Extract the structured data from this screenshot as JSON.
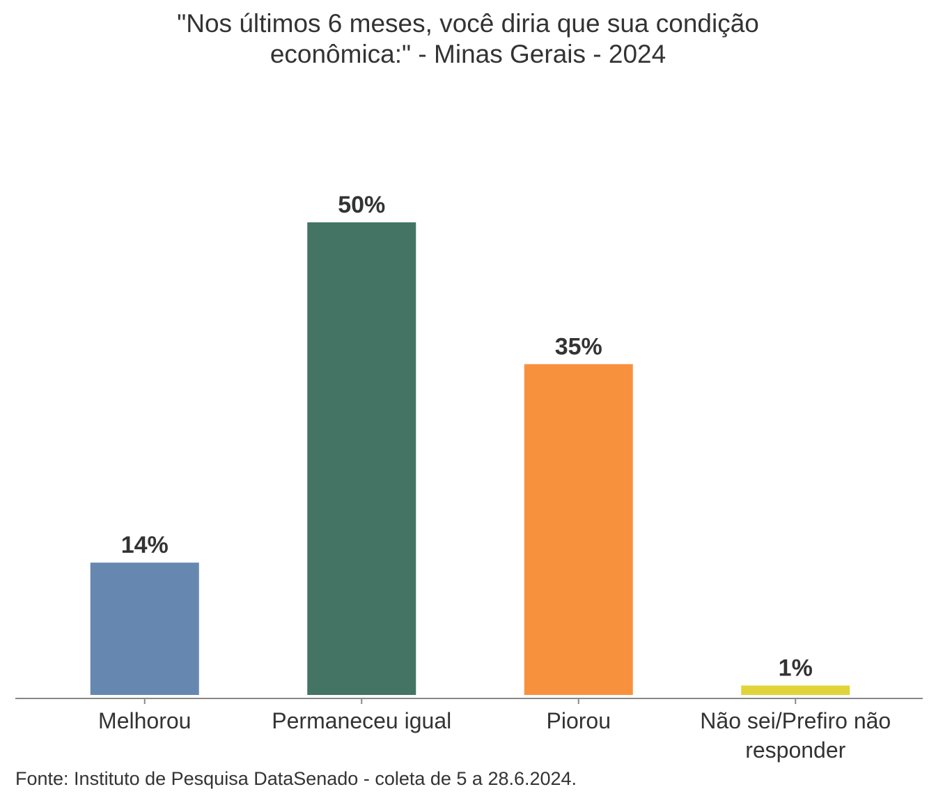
{
  "chart_data": {
    "type": "bar",
    "title": "\"Nos últimos 6 meses, você diria que sua condição econômica:\" - Minas Gerais - 2024",
    "categories": [
      "Melhorou",
      "Permaneceu igual",
      "Piorou",
      "Não sei/Prefiro não responder"
    ],
    "values": [
      14,
      50,
      35,
      1
    ],
    "value_labels": [
      "14%",
      "50%",
      "35%",
      "1%"
    ],
    "colors": [
      "#6688b0",
      "#447463",
      "#f8913e",
      "#e0d43a"
    ],
    "source": "Fonte: Instituto de Pesquisa DataSenado - coleta de 5 a 28.6.2024."
  }
}
